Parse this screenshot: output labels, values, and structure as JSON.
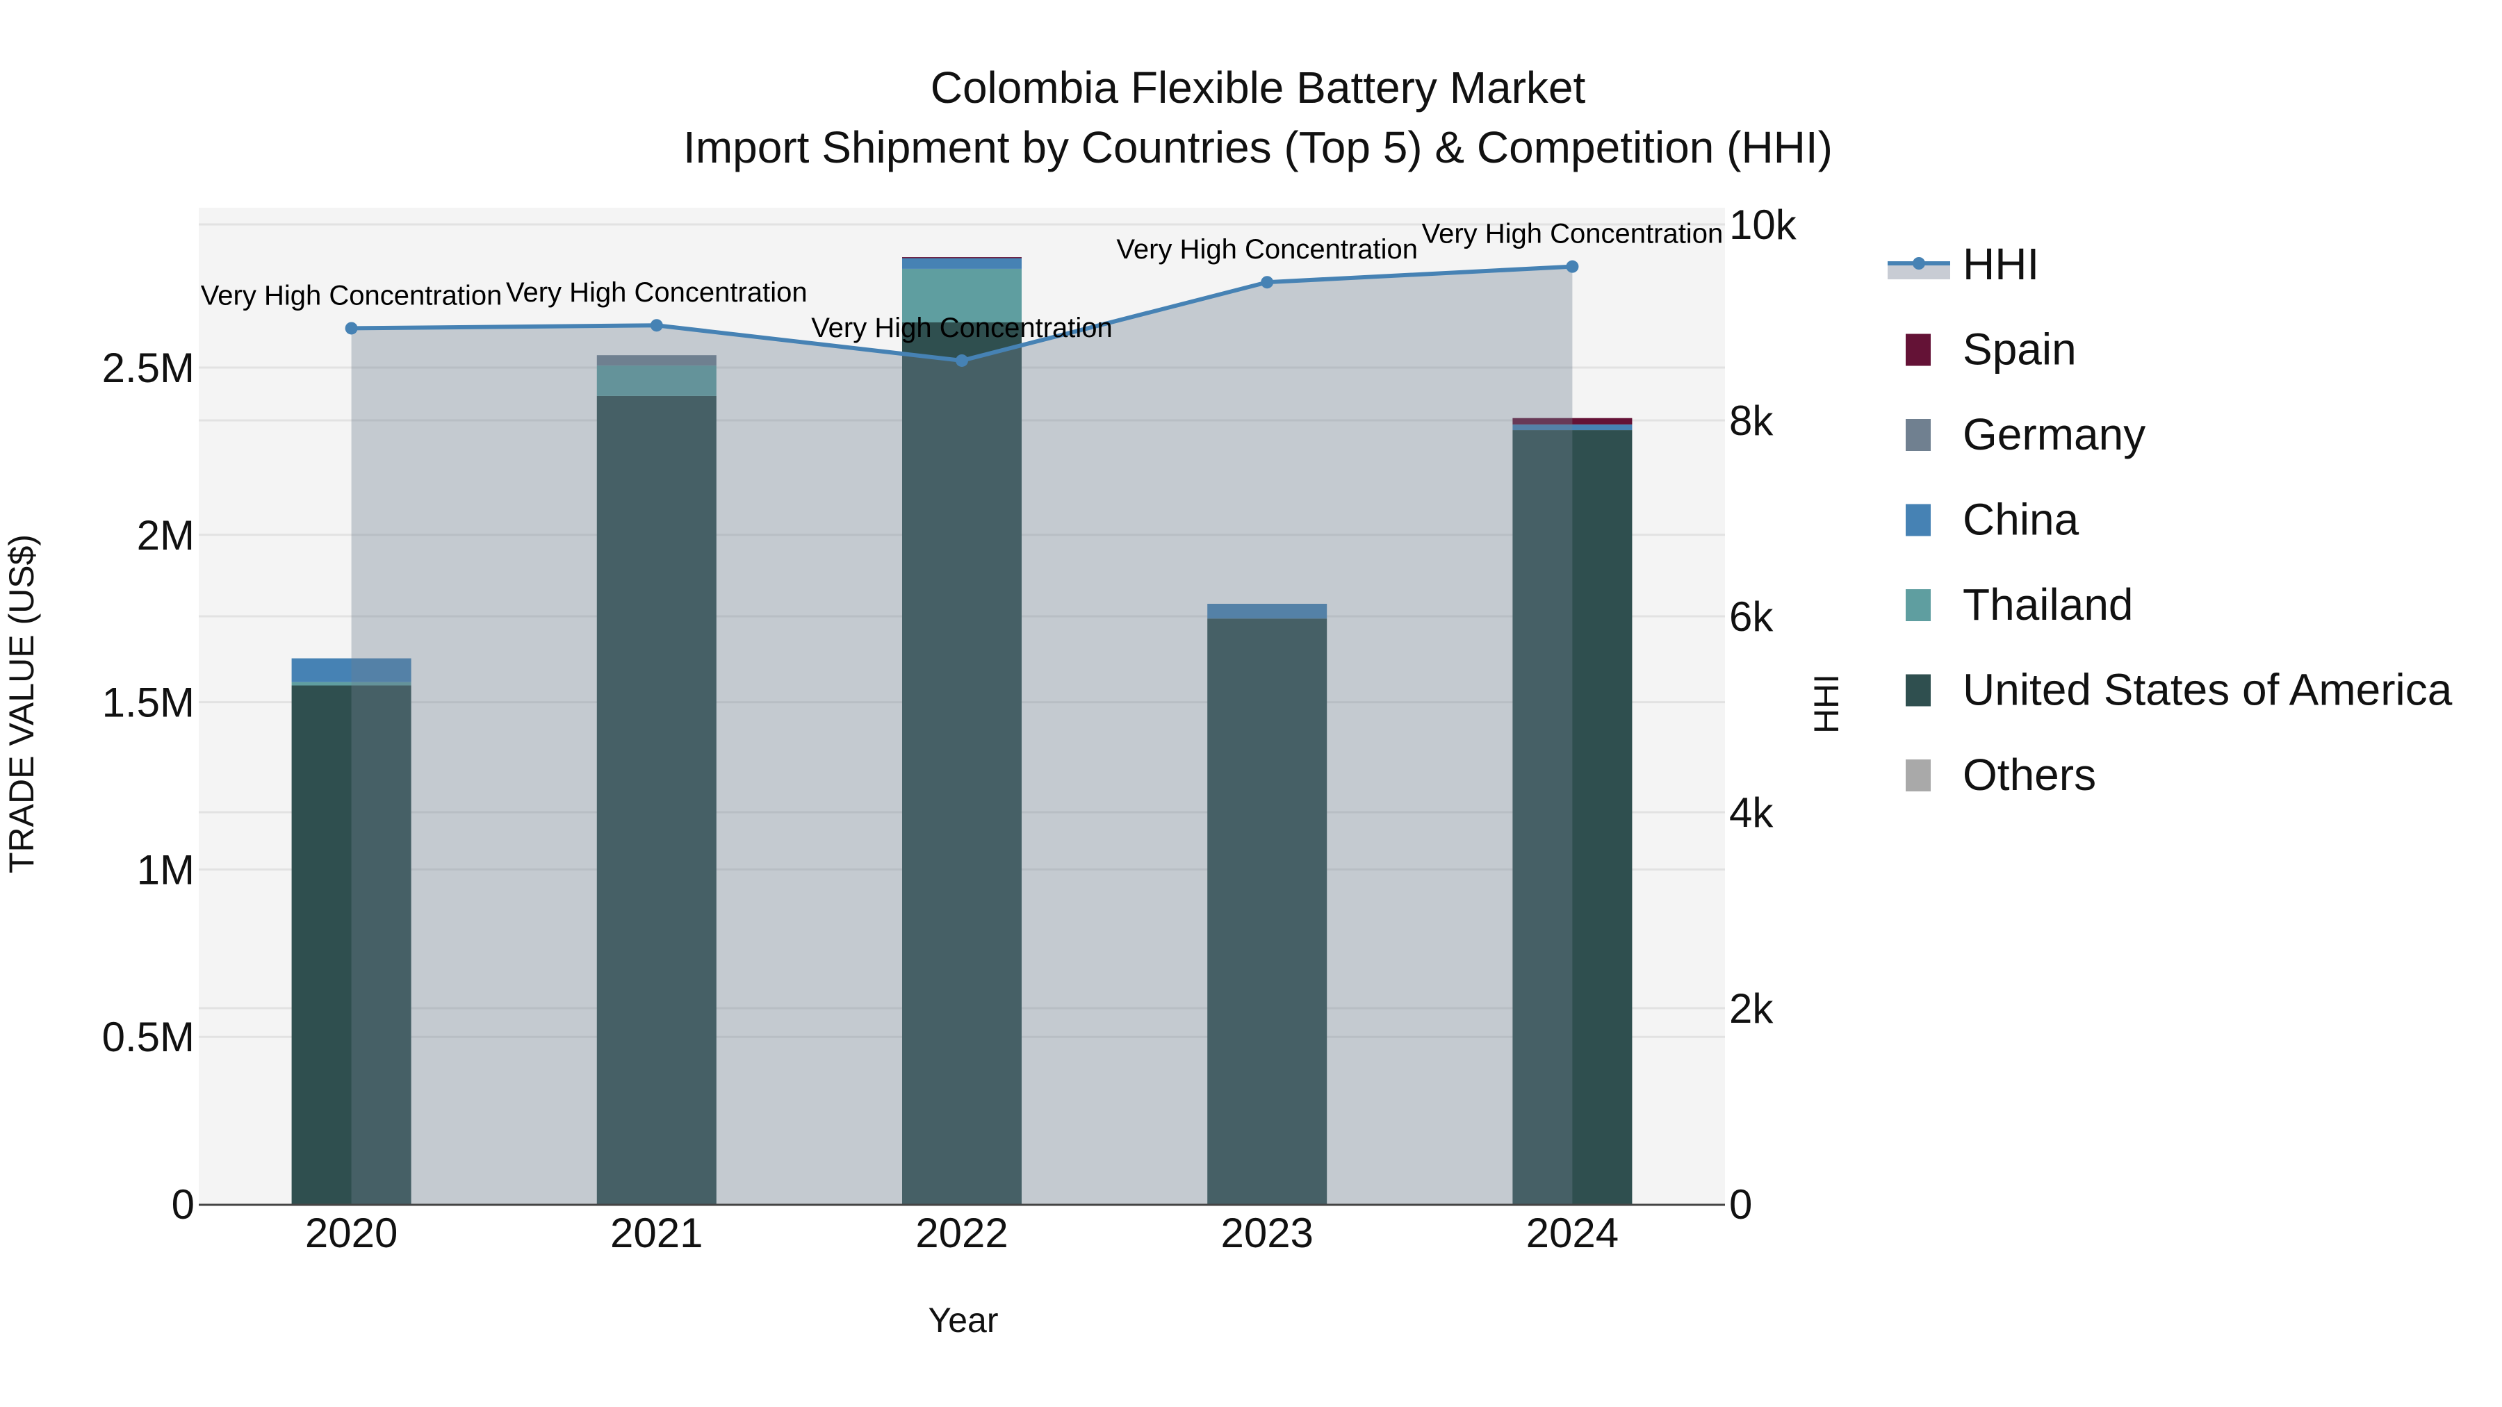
{
  "title": {
    "line1": "Colombia Flexible Battery Market",
    "line2": "Import Shipment by Countries (Top 5) & Competition (HHI)"
  },
  "axes": {
    "x_title": "Year",
    "y_left_title": "TRADE VALUE (US$)",
    "y_right_title": "HHI",
    "y_left_ticks": [
      {
        "value": 0,
        "label": "0"
      },
      {
        "value": 500000,
        "label": "0.5M"
      },
      {
        "value": 1000000,
        "label": "1M"
      },
      {
        "value": 1500000,
        "label": "1.5M"
      },
      {
        "value": 2000000,
        "label": "2M"
      },
      {
        "value": 2500000,
        "label": "2.5M"
      }
    ],
    "y_right_ticks": [
      {
        "value": 0,
        "label": "0"
      },
      {
        "value": 2000,
        "label": "2k"
      },
      {
        "value": 4000,
        "label": "4k"
      },
      {
        "value": 6000,
        "label": "6k"
      },
      {
        "value": 8000,
        "label": "8k"
      },
      {
        "value": 10000,
        "label": "10k"
      }
    ]
  },
  "legend": {
    "items": [
      {
        "key": "hhi",
        "label": "HHI",
        "type": "line",
        "color": "#4682B4",
        "fill": "#C8CCD4"
      },
      {
        "key": "spain",
        "label": "Spain",
        "type": "bar",
        "color": "#641236"
      },
      {
        "key": "germany",
        "label": "Germany",
        "type": "bar",
        "color": "#708090"
      },
      {
        "key": "china",
        "label": "China",
        "type": "bar",
        "color": "#4682B4"
      },
      {
        "key": "thailand",
        "label": "Thailand",
        "type": "bar",
        "color": "#5F9EA0"
      },
      {
        "key": "usa",
        "label": "United States of America",
        "type": "bar",
        "color": "#2F4F4F"
      },
      {
        "key": "others",
        "label": "Others",
        "type": "bar",
        "color": "#A9A9A9"
      }
    ]
  },
  "colors": {
    "plot_bg": "#F4F4F4",
    "grid": "#E2E2E2",
    "hhi_line": "#4682B4",
    "hhi_fill": "rgba(112,128,144,0.36)",
    "axis_line": "#444444"
  },
  "chart_data": {
    "type": "bar",
    "title": "Colombia Flexible Battery Market — Import Shipment by Countries (Top 5) & Competition (HHI)",
    "xlabel": "Year",
    "ylabel": "TRADE VALUE (US$)",
    "y2label": "HHI",
    "categories": [
      "2020",
      "2021",
      "2022",
      "2023",
      "2024"
    ],
    "ylim": [
      0,
      2950000
    ],
    "y2lim": [
      0,
      10100
    ],
    "grid": true,
    "legend_position": "right",
    "stacked": true,
    "series": [
      {
        "name": "United States of America",
        "values": [
          1550000,
          2415000,
          2635000,
          1750000,
          2313000
        ]
      },
      {
        "name": "Thailand",
        "values": [
          10000,
          91000,
          160000,
          0,
          0
        ]
      },
      {
        "name": "China",
        "values": [
          71000,
          0,
          33000,
          44000,
          17000
        ]
      },
      {
        "name": "Germany",
        "values": [
          0,
          31000,
          0,
          0,
          0
        ]
      },
      {
        "name": "Spain",
        "values": [
          0,
          0,
          2000,
          0,
          19000
        ]
      },
      {
        "name": "Others",
        "values": [
          0,
          0,
          0,
          0,
          0
        ]
      }
    ],
    "line_series": {
      "name": "HHI",
      "axis": "right",
      "values": [
        8940,
        8970,
        8610,
        9410,
        9570
      ],
      "annotations": [
        "Very High Concentration",
        "Very High Concentration",
        "Very High Concentration",
        "Very High Concentration",
        "Very High Concentration"
      ]
    }
  }
}
